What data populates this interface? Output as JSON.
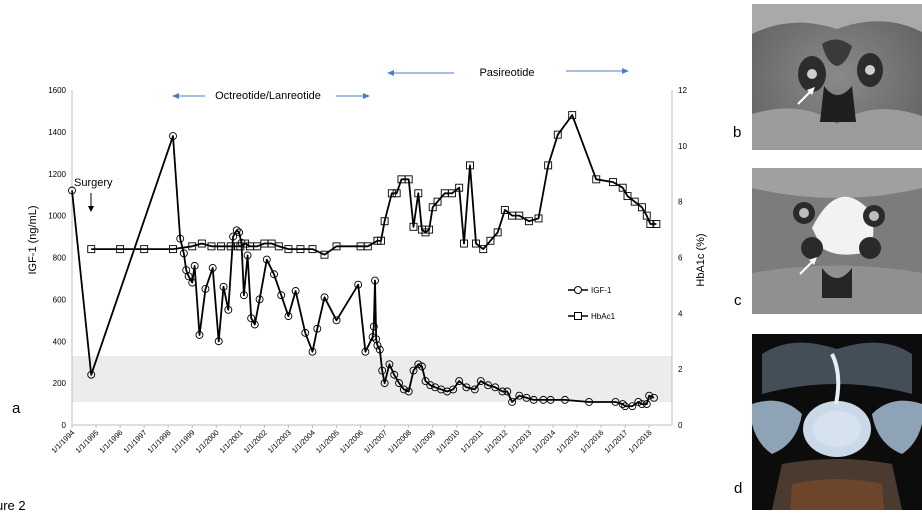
{
  "chart_data": {
    "type": "line",
    "xlabel": "",
    "ylabel_left": "IGF-1 (ng/mL)",
    "ylabel_right": "HbA1c (%)",
    "ylim_left": [
      0,
      1600
    ],
    "ylim_right": [
      0,
      12
    ],
    "yticks_left": [
      "0",
      "200",
      "400",
      "600",
      "800",
      "1000",
      "1200",
      "1400",
      "1600"
    ],
    "yticks_right": [
      "0",
      "2",
      "4",
      "6",
      "8",
      "10",
      "12"
    ],
    "xlim": [
      1994,
      2018.95
    ],
    "xticks": [
      "1/1/1994",
      "1/1/1995",
      "1/1/1996",
      "1/1/1997",
      "1/1/1998",
      "1/1/1999",
      "1/1/2000",
      "1/1/2001",
      "1/1/2002",
      "1/1/2003",
      "1/1/2004",
      "1/1/2005",
      "1/1/2006",
      "1/1/2007",
      "1/1/2008",
      "1/1/2009",
      "1/1/2010",
      "1/1/2011",
      "1/1/2012",
      "1/1/2013",
      "1/1/2014",
      "1/1/2015",
      "1/1/2016",
      "1/1/2017",
      "1/1/2018"
    ],
    "normal_range_igf1": [
      110,
      330
    ],
    "legend_placement": "right",
    "series": [
      {
        "name": "IGF-1",
        "axis": "left",
        "marker": "circle",
        "x": [
          1994.0,
          1994.8,
          1998.2,
          1998.5,
          1998.65,
          1998.75,
          1998.85,
          1999.0,
          1999.1,
          1999.3,
          1999.55,
          1999.85,
          2000.1,
          2000.3,
          2000.5,
          2000.7,
          2000.85,
          2000.95,
          2001.05,
          2001.15,
          2001.3,
          2001.45,
          2001.6,
          2001.8,
          2002.1,
          2002.4,
          2002.7,
          2003.0,
          2003.3,
          2003.7,
          2004.0,
          2004.2,
          2004.5,
          2005.0,
          2005.9,
          2006.2,
          2006.5,
          2006.55,
          2006.6,
          2006.65,
          2006.7,
          2006.8,
          2006.9,
          2007.0,
          2007.2,
          2007.4,
          2007.6,
          2007.8,
          2008.0,
          2008.2,
          2008.4,
          2008.55,
          2008.7,
          2008.9,
          2009.1,
          2009.35,
          2009.6,
          2009.85,
          2010.1,
          2010.4,
          2010.75,
          2011.0,
          2011.3,
          2011.6,
          2011.9,
          2012.1,
          2012.3,
          2012.6,
          2012.9,
          2013.2,
          2013.6,
          2013.9,
          2014.5,
          2015.5,
          2016.6,
          2016.9,
          2017.0,
          2017.3,
          2017.55,
          2017.7,
          2017.9,
          2018.0,
          2018.2
        ],
        "y": [
          1120,
          240,
          1380,
          890,
          820,
          740,
          710,
          680,
          760,
          430,
          650,
          750,
          400,
          660,
          550,
          900,
          930,
          920,
          870,
          620,
          810,
          510,
          480,
          600,
          790,
          720,
          620,
          520,
          640,
          440,
          350,
          460,
          610,
          500,
          670,
          350,
          420,
          470,
          690,
          410,
          380,
          360,
          260,
          200,
          290,
          240,
          200,
          170,
          160,
          260,
          290,
          280,
          210,
          190,
          180,
          170,
          160,
          170,
          210,
          180,
          170,
          210,
          190,
          180,
          160,
          160,
          110,
          140,
          130,
          120,
          120,
          120,
          120,
          110,
          110,
          100,
          90,
          90,
          110,
          100,
          100,
          140,
          130
        ]
      },
      {
        "name": "HbAc1",
        "axis": "right",
        "marker": "square",
        "x": [
          1994.8,
          1996.0,
          1997.0,
          1998.2,
          1999.0,
          1999.4,
          1999.8,
          2000.2,
          2000.6,
          2000.9,
          2001.0,
          2001.2,
          2001.4,
          2001.7,
          2002.0,
          2002.3,
          2002.6,
          2003.0,
          2003.5,
          2004.0,
          2004.5,
          2005.0,
          2006.0,
          2006.3,
          2006.7,
          2006.85,
          2007.0,
          2007.3,
          2007.5,
          2007.7,
          2008.0,
          2008.2,
          2008.4,
          2008.55,
          2008.7,
          2008.85,
          2009.0,
          2009.2,
          2009.5,
          2009.8,
          2010.1,
          2010.3,
          2010.55,
          2010.8,
          2011.1,
          2011.4,
          2011.7,
          2012.0,
          2012.3,
          2012.6,
          2013.0,
          2013.4,
          2013.8,
          2014.2,
          2014.8,
          2015.8,
          2016.5,
          2016.9,
          2017.1,
          2017.4,
          2017.7,
          2017.9,
          2018.05,
          2018.3
        ],
        "y": [
          6.3,
          6.3,
          6.3,
          6.3,
          6.4,
          6.5,
          6.4,
          6.4,
          6.4,
          6.4,
          6.4,
          6.5,
          6.4,
          6.4,
          6.5,
          6.5,
          6.4,
          6.3,
          6.3,
          6.3,
          6.1,
          6.4,
          6.4,
          6.4,
          6.6,
          6.6,
          7.3,
          8.3,
          8.3,
          8.8,
          8.8,
          7.1,
          8.3,
          7.0,
          6.9,
          7.0,
          7.8,
          8.0,
          8.3,
          8.3,
          8.5,
          6.5,
          9.3,
          6.5,
          6.3,
          6.6,
          6.9,
          7.7,
          7.5,
          7.5,
          7.3,
          7.4,
          9.3,
          10.4,
          11.1,
          8.8,
          8.7,
          8.5,
          8.2,
          8.0,
          7.8,
          7.5,
          7.2,
          7.2
        ]
      }
    ],
    "annotations": {
      "surgery": "Surgery",
      "octreotide": "Octreotide/Lanreotide",
      "pasireotide": "Pasireotide"
    }
  },
  "panels": {
    "a": "a",
    "b": "b",
    "c": "c",
    "d": "d"
  },
  "caption": "ure 2",
  "colors": {
    "line": "#000000",
    "arrow": "#4a7fc1",
    "normal_band": "#ececec"
  }
}
